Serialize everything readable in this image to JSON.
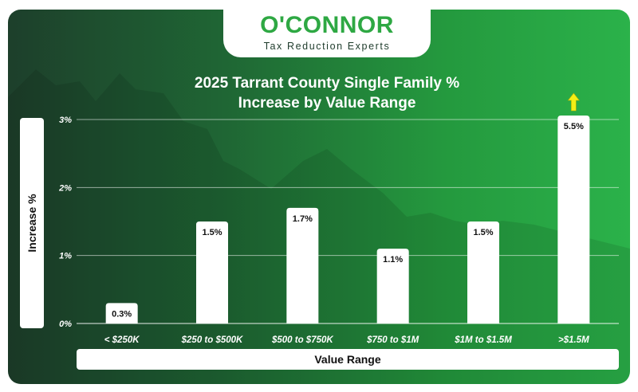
{
  "logo": {
    "brand": "O'CONNOR",
    "tagline": "Tax Reduction Experts"
  },
  "colors": {
    "brand_green": "#2ea843",
    "bar": "#ffffff",
    "arrow": "#f2ee16"
  },
  "chart_data": {
    "type": "bar",
    "title_line1": "2025 Tarrant County Single Family %",
    "title_line2": "Increase by Value Range",
    "xlabel": "Value Range",
    "ylabel": "Increase %",
    "categories": [
      "< $250K",
      "$250 to $500K",
      "$500 to $750K",
      "$750 to $1M",
      "$1M to $1.5M",
      ">$1.5M"
    ],
    "values": [
      0.3,
      1.5,
      1.7,
      1.1,
      1.5,
      5.5
    ],
    "value_labels": [
      "0.3%",
      "1.5%",
      "1.7%",
      "1.1%",
      "1.5%",
      "5.5%"
    ],
    "yticks": [
      "0%",
      "1%",
      "2%",
      "3%"
    ],
    "ylim": [
      0,
      3
    ],
    "grid": true,
    "legend": "none",
    "annotations": [
      {
        "type": "up-arrow",
        "category": ">$1.5M",
        "meaning": "value exceeds axis maximum"
      }
    ]
  }
}
